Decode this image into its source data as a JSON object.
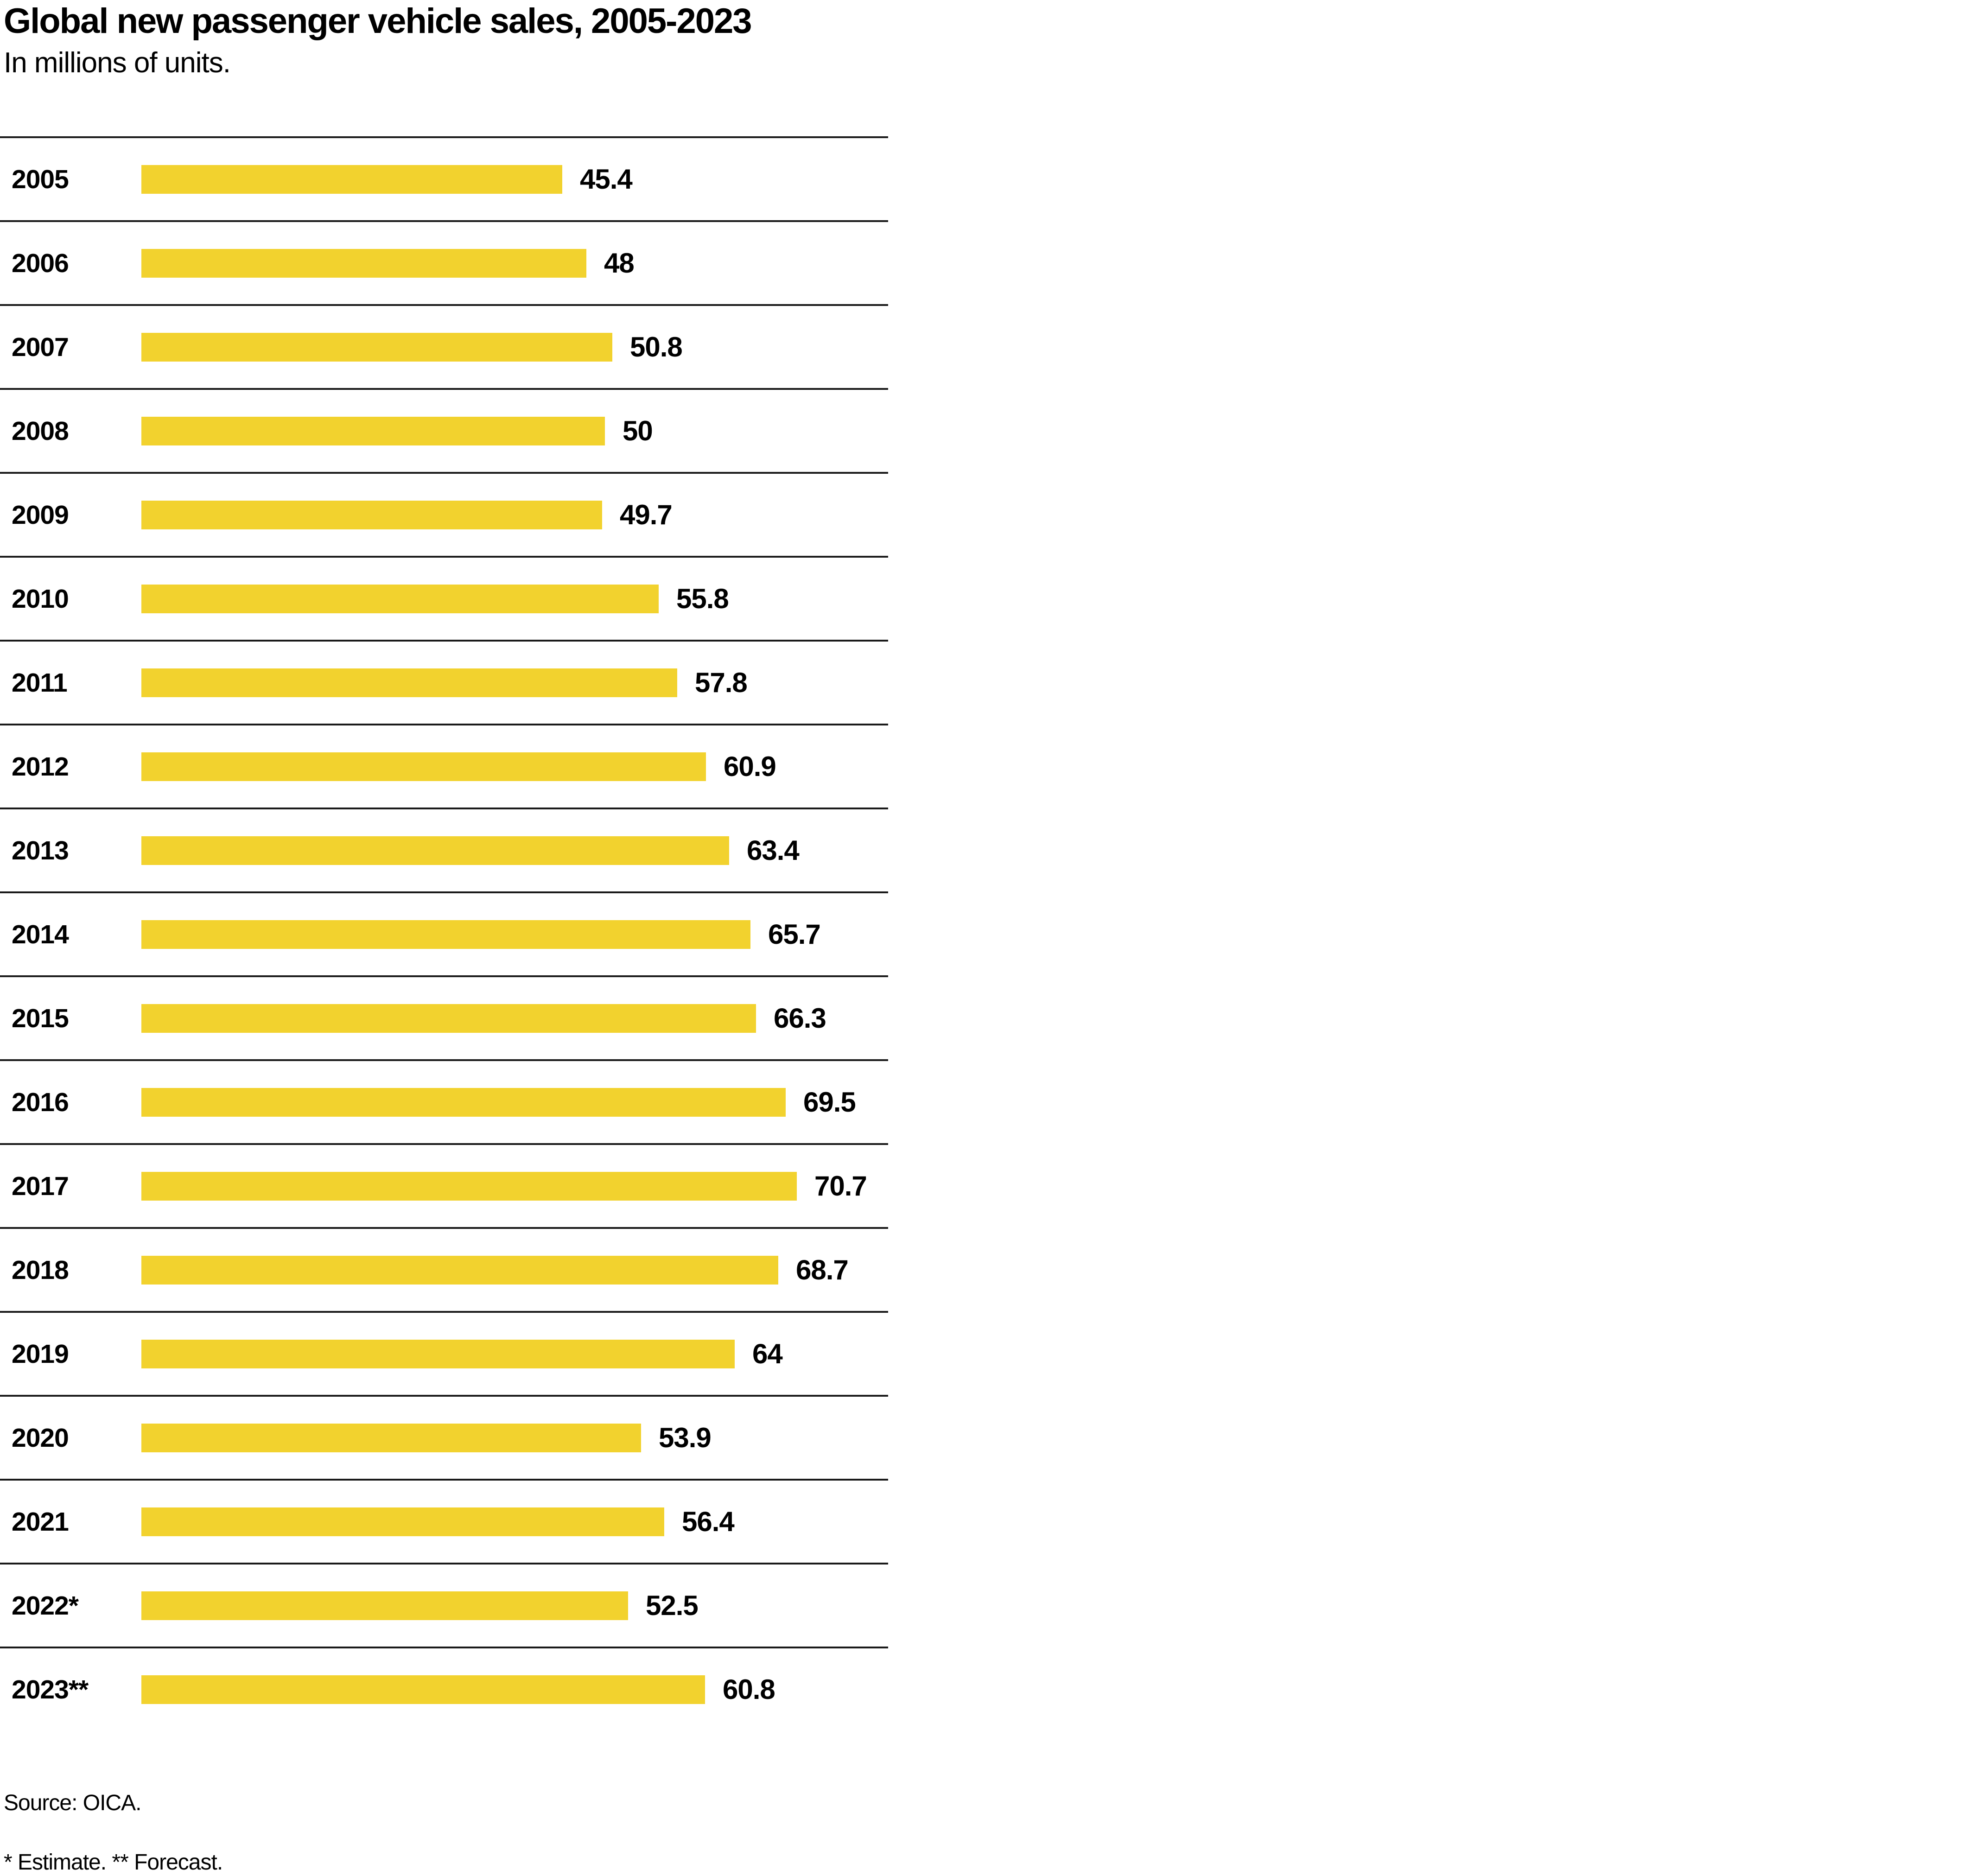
{
  "title": "Global new passenger vehicle sales, 2005-2023",
  "subtitle": "In millions of units.",
  "source": "Source: OICA.",
  "footnote": "* Estimate. ** Forecast.",
  "colors": {
    "bar": "#F2D22E",
    "divider": "#1a1a1a",
    "text": "#000000"
  },
  "chart_data": {
    "type": "bar",
    "orientation": "horizontal",
    "title": "Global new passenger vehicle sales, 2005-2023",
    "xlabel": "",
    "ylabel": "",
    "xlim": [
      0,
      80
    ],
    "grid": false,
    "legend": false,
    "unit": "millions of units",
    "categories": [
      "2005",
      "2006",
      "2007",
      "2008",
      "2009",
      "2010",
      "2011",
      "2012",
      "2013",
      "2014",
      "2015",
      "2016",
      "2017",
      "2018",
      "2019",
      "2020",
      "2021",
      "2022*",
      "2023**"
    ],
    "values": [
      45.4,
      48,
      50.8,
      50,
      49.7,
      55.8,
      57.8,
      60.9,
      63.4,
      65.7,
      66.3,
      69.5,
      70.7,
      68.7,
      64,
      53.9,
      56.4,
      52.5,
      60.8
    ],
    "value_labels": [
      "45.4",
      "48",
      "50.8",
      "50",
      "49.7",
      "55.8",
      "57.8",
      "60.9",
      "63.4",
      "65.7",
      "66.3",
      "69.5",
      "70.7",
      "68.7",
      "64",
      "53.9",
      "56.4",
      "52.5",
      "60.8"
    ]
  }
}
